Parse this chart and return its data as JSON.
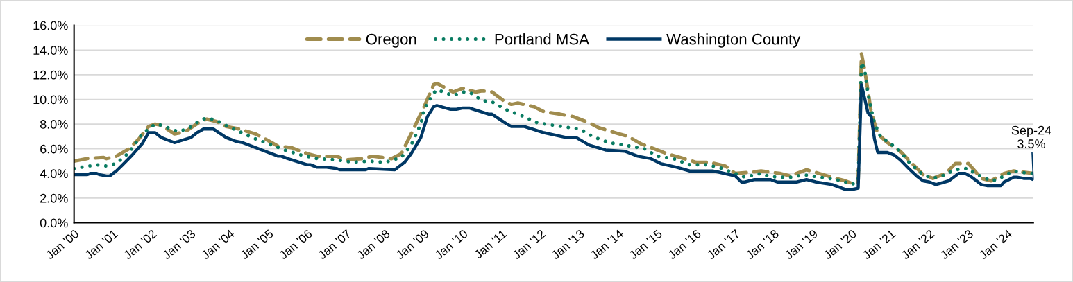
{
  "chart_data": {
    "type": "line",
    "ylim": [
      0,
      16
    ],
    "yticks": [
      {
        "value": 0,
        "label": "0.0%"
      },
      {
        "value": 2,
        "label": "2.0%"
      },
      {
        "value": 4,
        "label": "4.0%"
      },
      {
        "value": 6,
        "label": "6.0%"
      },
      {
        "value": 8,
        "label": "8.0%"
      },
      {
        "value": 10,
        "label": "10.0%"
      },
      {
        "value": 12,
        "label": "12.0%"
      },
      {
        "value": 14,
        "label": "14.0%"
      },
      {
        "value": 16,
        "label": "16.0%"
      }
    ],
    "xlim": [
      "2000-01",
      "2024-09"
    ],
    "xticks": [
      {
        "value": "2000-01",
        "label": "Jan '00"
      },
      {
        "value": "2001-01",
        "label": "Jan '01"
      },
      {
        "value": "2002-01",
        "label": "Jan '02"
      },
      {
        "value": "2003-01",
        "label": "Jan '03"
      },
      {
        "value": "2004-01",
        "label": "Jan '04"
      },
      {
        "value": "2005-01",
        "label": "Jan '05"
      },
      {
        "value": "2006-01",
        "label": "Jan '06"
      },
      {
        "value": "2007-01",
        "label": "Jan '07"
      },
      {
        "value": "2008-01",
        "label": "Jan '08"
      },
      {
        "value": "2009-01",
        "label": "Jan '09"
      },
      {
        "value": "2010-01",
        "label": "Jan '10"
      },
      {
        "value": "2011-01",
        "label": "Jan '11"
      },
      {
        "value": "2012-01",
        "label": "Jan '12"
      },
      {
        "value": "2013-01",
        "label": "Jan '13"
      },
      {
        "value": "2014-01",
        "label": "Jan '14"
      },
      {
        "value": "2015-01",
        "label": "Jan '15"
      },
      {
        "value": "2016-01",
        "label": "Jan '16"
      },
      {
        "value": "2017-01",
        "label": "Jan '17"
      },
      {
        "value": "2018-01",
        "label": "Jan '18"
      },
      {
        "value": "2019-01",
        "label": "Jan '19"
      },
      {
        "value": "2020-01",
        "label": "Jan '20"
      },
      {
        "value": "2021-01",
        "label": "Jan '21"
      },
      {
        "value": "2022-01",
        "label": "Jan '22"
      },
      {
        "value": "2023-01",
        "label": "Jan '23"
      },
      {
        "value": "2024-01",
        "label": "Jan '24"
      }
    ],
    "grid": "y",
    "legend": "top",
    "marker": "none",
    "annotations": [
      {
        "text": "Sep-24\n3.5%",
        "x": "2024-09",
        "y": 3.5
      }
    ],
    "series": [
      {
        "name": "Oregon",
        "color": "#a08c4e",
        "line_style": "dashed",
        "x": [
          "2000-01",
          "2000-05",
          "2000-10",
          "2000-11",
          "2001-02",
          "2001-06",
          "2001-09",
          "2001-12",
          "2002-02",
          "2002-04",
          "2002-08",
          "2002-10",
          "2002-12",
          "2003-04",
          "2003-06",
          "2003-09",
          "2003-12",
          "2004-04",
          "2004-09",
          "2004-12",
          "2005-04",
          "2005-08",
          "2006-01",
          "2006-04",
          "2006-10",
          "2007-01",
          "2007-06",
          "2007-09",
          "2008-03",
          "2008-06",
          "2008-09",
          "2009-01",
          "2009-04",
          "2009-05",
          "2009-10",
          "2010-01",
          "2010-05",
          "2010-07",
          "2010-10",
          "2011-02",
          "2011-04",
          "2011-06",
          "2011-11",
          "2012-02",
          "2012-07",
          "2012-11",
          "2013-04",
          "2013-07",
          "2013-12",
          "2014-04",
          "2014-08",
          "2014-12",
          "2015-04",
          "2015-08",
          "2016-01",
          "2016-05",
          "2016-10",
          "2016-12",
          "2017-01",
          "2017-06",
          "2017-09",
          "2018-03",
          "2018-06",
          "2018-11",
          "2019-03",
          "2019-08",
          "2019-11",
          "2020-01",
          "2020-03",
          "2020-04",
          "2020-05",
          "2020-06",
          "2020-07",
          "2020-09",
          "2020-12",
          "2021-04",
          "2021-08",
          "2021-11",
          "2022-02",
          "2022-06",
          "2022-09",
          "2023-01",
          "2023-05",
          "2023-08",
          "2023-12",
          "2024-03",
          "2024-06",
          "2024-09"
        ],
        "values": [
          5.0,
          5.2,
          5.3,
          5.2,
          5.4,
          6.0,
          6.8,
          7.8,
          8.0,
          7.9,
          7.2,
          7.3,
          7.5,
          8.2,
          8.4,
          8.2,
          7.8,
          7.6,
          7.2,
          6.8,
          6.2,
          6.1,
          5.6,
          5.4,
          5.4,
          5.1,
          5.2,
          5.4,
          5.2,
          5.6,
          7.2,
          9.4,
          11.2,
          11.3,
          10.6,
          10.9,
          10.6,
          10.7,
          10.6,
          9.8,
          9.6,
          9.7,
          9.4,
          9.0,
          8.8,
          8.6,
          8.1,
          7.7,
          7.3,
          7.0,
          6.4,
          6.0,
          5.6,
          5.3,
          4.9,
          4.9,
          4.6,
          4.2,
          4.0,
          4.1,
          4.2,
          4.0,
          3.8,
          4.3,
          4.0,
          3.6,
          3.4,
          3.2,
          3.3,
          13.7,
          12.4,
          10.7,
          9.0,
          7.2,
          6.5,
          5.8,
          4.7,
          3.9,
          3.6,
          4.0,
          4.8,
          4.8,
          3.6,
          3.4,
          4.0,
          4.2,
          4.1,
          4.0
        ]
      },
      {
        "name": "Portland MSA",
        "color": "#0a7c62",
        "line_style": "dotted",
        "x": [
          "2000-01",
          "2000-08",
          "2000-11",
          "2001-02",
          "2001-06",
          "2001-10",
          "2002-02",
          "2002-04",
          "2002-09",
          "2002-12",
          "2003-04",
          "2003-06",
          "2003-09",
          "2003-11",
          "2004-04",
          "2004-08",
          "2005-02",
          "2005-06",
          "2005-11",
          "2006-04",
          "2006-10",
          "2007-03",
          "2007-08",
          "2008-01",
          "2008-06",
          "2008-09",
          "2008-12",
          "2009-01",
          "2009-04",
          "2009-05",
          "2009-08",
          "2009-10",
          "2010-01",
          "2010-03",
          "2010-07",
          "2010-10",
          "2011-02",
          "2011-07",
          "2011-12",
          "2012-05",
          "2012-10",
          "2013-01",
          "2013-05",
          "2013-10",
          "2014-03",
          "2014-09",
          "2015-01",
          "2015-06",
          "2015-11",
          "2016-04",
          "2016-08",
          "2017-01",
          "2017-04",
          "2017-09",
          "2017-11",
          "2018-02",
          "2018-07",
          "2018-10",
          "2019-03",
          "2019-06",
          "2019-10",
          "2020-01",
          "2020-03",
          "2020-04",
          "2020-05",
          "2020-06",
          "2020-07",
          "2020-08",
          "2020-10",
          "2020-12",
          "2021-04",
          "2021-07",
          "2021-11",
          "2022-02",
          "2022-06",
          "2022-08",
          "2022-11",
          "2023-01",
          "2023-03",
          "2023-08",
          "2023-10",
          "2023-12",
          "2024-03",
          "2024-05",
          "2024-08",
          "2024-09"
        ],
        "values": [
          4.4,
          4.7,
          4.6,
          4.8,
          5.7,
          7.2,
          8.0,
          7.9,
          7.4,
          7.6,
          8.3,
          8.5,
          8.3,
          8.0,
          7.4,
          6.9,
          6.3,
          5.9,
          5.5,
          5.2,
          5.1,
          4.9,
          5.0,
          4.9,
          5.3,
          6.3,
          8.0,
          9.2,
          10.5,
          10.8,
          10.5,
          10.3,
          10.6,
          10.6,
          9.9,
          9.8,
          9.2,
          8.7,
          8.1,
          7.9,
          7.7,
          7.6,
          7.0,
          6.5,
          6.3,
          6.0,
          5.4,
          5.2,
          4.7,
          4.7,
          4.5,
          4.0,
          3.7,
          4.0,
          3.8,
          3.7,
          3.7,
          3.9,
          3.7,
          3.6,
          3.4,
          3.1,
          3.4,
          13.0,
          12.4,
          10.5,
          9.2,
          8.1,
          6.9,
          6.6,
          5.8,
          4.8,
          3.9,
          3.6,
          3.9,
          4.2,
          4.4,
          4.4,
          4.0,
          3.4,
          3.5,
          3.8,
          4.2,
          4.1,
          4.0,
          4.0
        ]
      },
      {
        "name": "Washington County",
        "color": "#003865",
        "line_style": "solid",
        "x": [
          "2000-01",
          "2000-05",
          "2000-06",
          "2000-08",
          "2000-09",
          "2000-11",
          "2000-12",
          "2001-02",
          "2001-04",
          "2001-07",
          "2001-10",
          "2001-12",
          "2002-02",
          "2002-04",
          "2002-07",
          "2002-08",
          "2003-01",
          "2003-03",
          "2003-05",
          "2003-08",
          "2003-12",
          "2004-03",
          "2004-05",
          "2005-04",
          "2005-05",
          "2005-07",
          "2006-01",
          "2006-02",
          "2006-04",
          "2006-07",
          "2006-10",
          "2006-11",
          "2007-07",
          "2007-08",
          "2008-04",
          "2008-07",
          "2008-09",
          "2008-12",
          "2009-02",
          "2009-04",
          "2009-05",
          "2009-09",
          "2009-11",
          "2010-01",
          "2010-03",
          "2010-09",
          "2010-10",
          "2011-02",
          "2011-04",
          "2011-08",
          "2012-02",
          "2012-09",
          "2012-12",
          "2013-04",
          "2013-09",
          "2014-03",
          "2014-07",
          "2014-11",
          "2015-02",
          "2015-07",
          "2015-11",
          "2016-06",
          "2016-08",
          "2017-01",
          "2017-03",
          "2017-04",
          "2017-07",
          "2017-12",
          "2018-02",
          "2018-08",
          "2018-11",
          "2019-02",
          "2019-07",
          "2019-11",
          "2020-01",
          "2020-03",
          "2020-04",
          "2020-06",
          "2020-07",
          "2020-08",
          "2020-09",
          "2020-12",
          "2021-02",
          "2021-04",
          "2021-07",
          "2021-09",
          "2021-11",
          "2022-01",
          "2022-03",
          "2022-07",
          "2022-10",
          "2022-12",
          "2023-02",
          "2023-05",
          "2023-07",
          "2023-11",
          "2023-12",
          "2024-03",
          "2024-04",
          "2024-06",
          "2024-08",
          "2024-09"
        ],
        "values": [
          3.9,
          3.9,
          4.0,
          4.0,
          3.9,
          3.8,
          3.8,
          4.2,
          4.7,
          5.5,
          6.4,
          7.3,
          7.3,
          6.9,
          6.6,
          6.5,
          6.9,
          7.3,
          7.6,
          7.6,
          6.9,
          6.6,
          6.5,
          5.4,
          5.4,
          5.2,
          4.7,
          4.7,
          4.5,
          4.5,
          4.4,
          4.3,
          4.3,
          4.4,
          4.3,
          4.9,
          5.6,
          6.9,
          8.6,
          9.4,
          9.5,
          9.2,
          9.2,
          9.3,
          9.3,
          8.8,
          8.8,
          8.1,
          7.8,
          7.8,
          7.3,
          6.9,
          6.9,
          6.3,
          5.9,
          5.8,
          5.4,
          5.2,
          4.8,
          4.5,
          4.2,
          4.2,
          4.1,
          3.8,
          3.3,
          3.3,
          3.5,
          3.5,
          3.3,
          3.3,
          3.5,
          3.3,
          3.1,
          2.7,
          2.7,
          2.8,
          11.2,
          8.9,
          8.6,
          6.8,
          5.7,
          5.7,
          5.5,
          5.1,
          4.3,
          3.8,
          3.4,
          3.3,
          3.1,
          3.4,
          4.0,
          4.0,
          3.7,
          3.1,
          3.0,
          3.0,
          3.3,
          3.7,
          3.7,
          3.6,
          3.6,
          3.5
        ]
      }
    ]
  }
}
